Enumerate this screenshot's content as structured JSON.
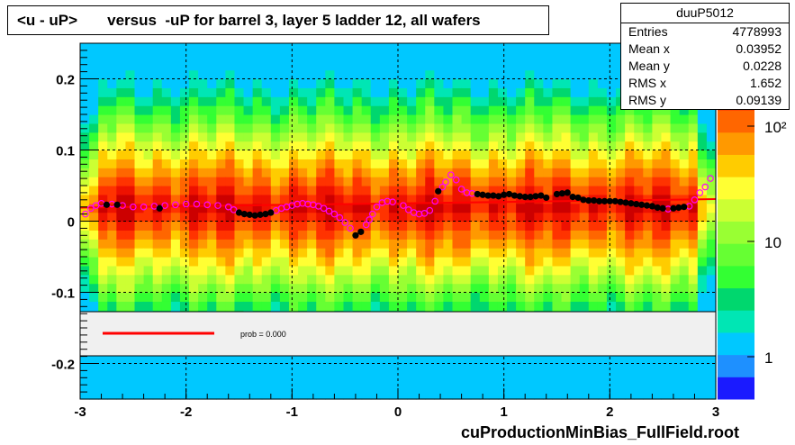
{
  "title": "<u - uP>       versus  -uP for barrel 3, layer 5 ladder 12, all wafers",
  "stats": {
    "name": "duuP5012",
    "rows": [
      {
        "key": "Entries",
        "value": "4778993"
      },
      {
        "key": "Mean x",
        "value": "0.03952"
      },
      {
        "key": "Mean y",
        "value": "0.0228"
      },
      {
        "key": "RMS x",
        "value": "1.652"
      },
      {
        "key": "RMS y",
        "value": "0.09139"
      }
    ]
  },
  "fit": {
    "prob_text": "prob = 0.000",
    "line_color": "#ff0000"
  },
  "colors": {
    "profile_points": "#000000",
    "profile_open": "#ff00ff",
    "fit_line": "#ff0000"
  },
  "chart_data": {
    "type": "heatmap",
    "title": "<u - uP>       versus  -uP for barrel 3, layer 5 ladder 12, all wafers",
    "xlabel": "cuProductionMinBias_FullField.root",
    "ylabel": "",
    "xlim": [
      -3,
      3
    ],
    "ylim": [
      -0.25,
      0.25
    ],
    "x_ticks": [
      "-3",
      "-2",
      "-1",
      "0",
      "1",
      "2",
      "3"
    ],
    "y_ticks": [
      "0.2",
      "0.1",
      "0",
      "-0.1",
      "-0.2"
    ],
    "colorbar_ticks": [
      "1",
      "10",
      "10²"
    ],
    "grid": true,
    "log_z": true,
    "profile_filled": {
      "x": [
        -2.75,
        -2.65,
        -2.25,
        -1.5,
        -1.45,
        -1.4,
        -1.35,
        -1.3,
        -1.25,
        -1.2,
        -0.4,
        -0.35,
        0.38,
        0.75,
        0.8,
        0.85,
        0.9,
        0.95,
        1.0,
        1.05,
        1.1,
        1.15,
        1.2,
        1.25,
        1.3,
        1.35,
        1.4,
        1.5,
        1.55,
        1.6,
        1.65,
        1.7,
        1.75,
        1.8,
        1.85,
        1.9,
        1.95,
        2.0,
        2.05,
        2.1,
        2.15,
        2.2,
        2.25,
        2.3,
        2.35,
        2.4,
        2.45,
        2.5,
        2.6,
        2.65,
        2.7
      ],
      "y": [
        0.023,
        0.023,
        0.018,
        0.012,
        0.01,
        0.009,
        0.008,
        0.009,
        0.01,
        0.012,
        -0.02,
        -0.015,
        0.042,
        0.038,
        0.037,
        0.036,
        0.036,
        0.035,
        0.037,
        0.038,
        0.036,
        0.035,
        0.034,
        0.034,
        0.035,
        0.036,
        0.033,
        0.038,
        0.039,
        0.04,
        0.034,
        0.033,
        0.03,
        0.029,
        0.029,
        0.028,
        0.028,
        0.028,
        0.028,
        0.027,
        0.026,
        0.025,
        0.024,
        0.023,
        0.022,
        0.021,
        0.019,
        0.018,
        0.018,
        0.019,
        0.02
      ]
    },
    "profile_open": {
      "x": [
        -2.95,
        -2.9,
        -2.85,
        -2.8,
        -2.7,
        -2.6,
        -2.5,
        -2.4,
        -2.3,
        -2.2,
        -2.1,
        -2.0,
        -1.9,
        -1.8,
        -1.7,
        -1.6,
        -1.55,
        -1.15,
        -1.1,
        -1.05,
        -1.0,
        -0.95,
        -0.9,
        -0.85,
        -0.8,
        -0.75,
        -0.7,
        -0.65,
        -0.6,
        -0.55,
        -0.5,
        -0.45,
        -0.3,
        -0.27,
        -0.24,
        -0.2,
        -0.15,
        -0.1,
        -0.05,
        0.05,
        0.1,
        0.15,
        0.2,
        0.25,
        0.3,
        0.35,
        0.42,
        0.45,
        0.5,
        0.55,
        0.6,
        0.65,
        0.7,
        2.55,
        2.75,
        2.8,
        2.85,
        2.9,
        2.95
      ],
      "y": [
        0.01,
        0.018,
        0.022,
        0.025,
        0.024,
        0.022,
        0.02,
        0.02,
        0.021,
        0.022,
        0.023,
        0.024,
        0.024,
        0.023,
        0.022,
        0.02,
        0.016,
        0.015,
        0.018,
        0.02,
        0.022,
        0.024,
        0.025,
        0.024,
        0.023,
        0.021,
        0.018,
        0.014,
        0.01,
        0.005,
        -0.002,
        -0.01,
        -0.005,
        0.002,
        0.01,
        0.02,
        0.026,
        0.028,
        0.027,
        0.022,
        0.016,
        0.012,
        0.01,
        0.011,
        0.015,
        0.028,
        0.048,
        0.055,
        0.065,
        0.058,
        0.045,
        0.04,
        0.039,
        0.017,
        0.021,
        0.03,
        0.04,
        0.048,
        0.06
      ]
    },
    "fit_line": {
      "x": [
        -3,
        3
      ],
      "y": [
        0.019,
        0.031
      ]
    }
  }
}
